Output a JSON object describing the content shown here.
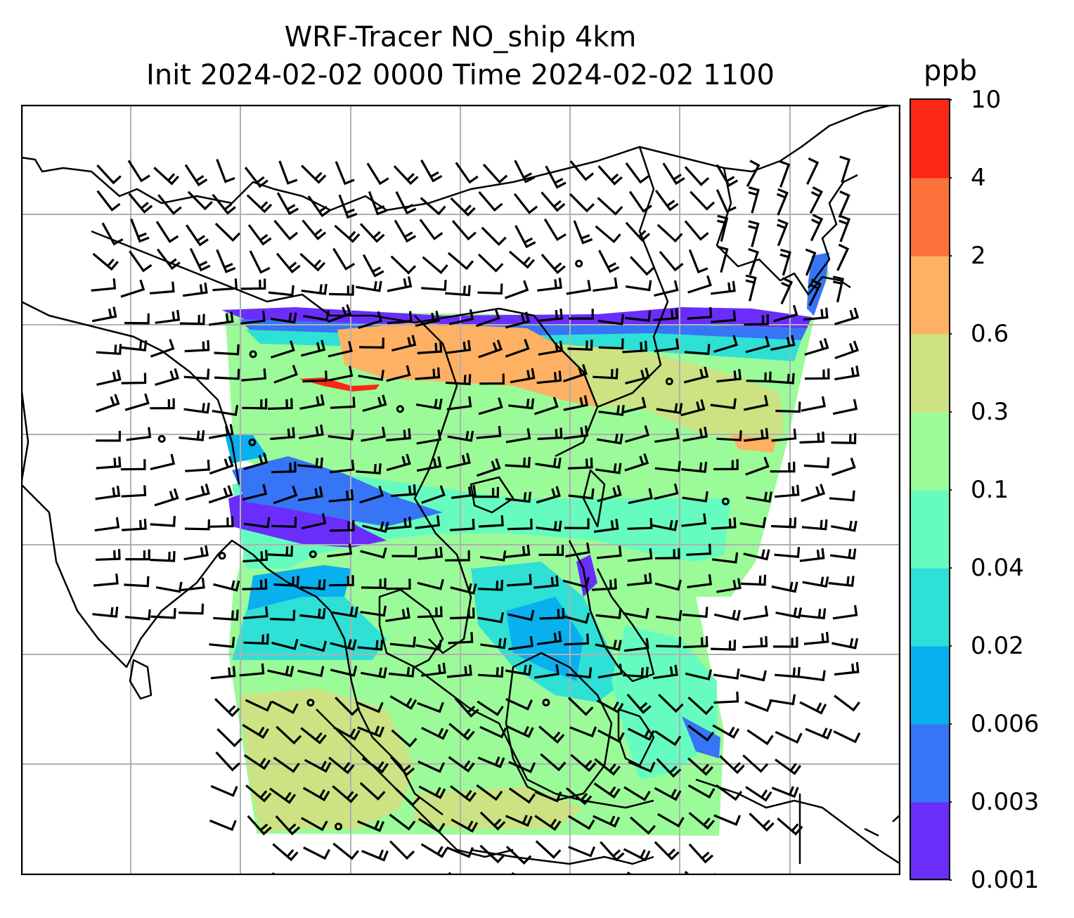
{
  "title": {
    "line1": "WRF-Tracer NO_ship 4km",
    "line2": "Init 2024-02-02 0000 Time 2024-02-02 1100"
  },
  "colorbar": {
    "unit": "ppb",
    "ticks": [
      "0.001",
      "0.003",
      "0.006",
      "0.02",
      "0.04",
      "0.1",
      "0.3",
      "0.6",
      "2",
      "4",
      "10"
    ],
    "colors": [
      "#6a2dfb",
      "#3675f5",
      "#08b0ef",
      "#2fe0d6",
      "#66fcc0",
      "#9bfb99",
      "#cde283",
      "#feb163",
      "#fd713b",
      "#fb2717"
    ]
  },
  "map": {
    "land_outline_color": "#000000",
    "gridline_color": "#b0b0b0",
    "wind_barb_color": "#000000",
    "missing_data_color": "#ffffff"
  }
}
